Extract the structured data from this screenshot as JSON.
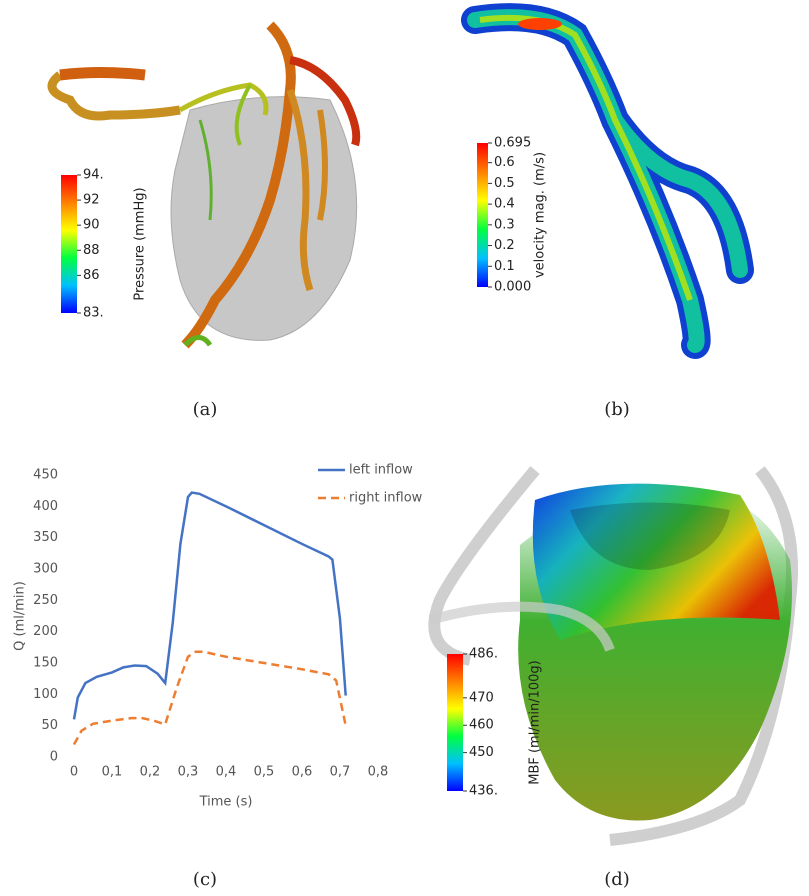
{
  "renders": [
    {
      "caption": "(a)",
      "colorbar": {
        "label": "Pressure (mmHg)",
        "lim": [
          83,
          94
        ],
        "ticks": [
          {
            "value": 94,
            "label": "94."
          },
          92,
          90,
          88,
          86,
          {
            "value": 83,
            "label": "83."
          }
        ],
        "colors": [
          "#0000ff",
          "#00c0ff",
          "#00ff40",
          "#ffff00",
          "#ff8000",
          "#ff0000"
        ]
      }
    },
    {
      "caption": "(b)",
      "colorbar": {
        "label": "velocity mag. (m/s)",
        "lim": [
          0,
          0.695
        ],
        "ticks": [
          0.695,
          0.6,
          0.5,
          0.4,
          0.3,
          0.2,
          0.1,
          {
            "value": 0,
            "label": "0.000"
          }
        ],
        "colors": [
          "#0000ff",
          "#00c0ff",
          "#00ff40",
          "#ffff00",
          "#ff8000",
          "#ff0000"
        ]
      }
    },
    {
      "caption": "(d)",
      "colorbar": {
        "label": "MBF (ml/min/100g)",
        "lim": [
          436,
          486
        ],
        "ticks": [
          {
            "value": 486,
            "label": "486."
          },
          470,
          460,
          450,
          {
            "value": 436,
            "label": "436."
          }
        ],
        "colors": [
          "#0000ff",
          "#00c0ff",
          "#00ff40",
          "#ffff00",
          "#ff8000",
          "#ff0000"
        ]
      }
    }
  ],
  "chart_data": {
    "type": "line",
    "caption": "(c)",
    "x_label": "Time (s)",
    "y_label": "Q (ml/min)",
    "xlim": [
      0,
      0.8
    ],
    "ylim": [
      0,
      450
    ],
    "xticks": [
      0,
      {
        "value": 0.1,
        "label": "0,1"
      },
      {
        "value": 0.2,
        "label": "0,2"
      },
      {
        "value": 0.3,
        "label": "0,3"
      },
      {
        "value": 0.4,
        "label": "0,4"
      },
      {
        "value": 0.5,
        "label": "0,5"
      },
      {
        "value": 0.6,
        "label": "0,6"
      },
      {
        "value": 0.7,
        "label": "0,7"
      },
      {
        "value": 0.8,
        "label": "0,8"
      }
    ],
    "yticks": [
      0,
      50,
      100,
      150,
      200,
      250,
      300,
      350,
      400,
      450
    ],
    "grid": false,
    "legend": "top-right",
    "series": [
      {
        "name": "left inflow",
        "color": "#4472c4",
        "dashed": false,
        "x": [
          0,
          0.01,
          0.03,
          0.06,
          0.1,
          0.13,
          0.16,
          0.19,
          0.22,
          0.24,
          0.26,
          0.28,
          0.3,
          0.31,
          0.33,
          0.4,
          0.5,
          0.6,
          0.67,
          0.68,
          0.7,
          0.715
        ],
        "values": [
          60,
          95,
          118,
          128,
          135,
          143,
          146,
          145,
          133,
          118,
          215,
          340,
          415,
          422,
          420,
          400,
          370,
          340,
          320,
          315,
          220,
          98
        ]
      },
      {
        "name": "right inflow",
        "color": "#ed7d31",
        "dashed": true,
        "x": [
          0,
          0.02,
          0.05,
          0.1,
          0.15,
          0.18,
          0.21,
          0.24,
          0.27,
          0.3,
          0.32,
          0.34,
          0.4,
          0.5,
          0.6,
          0.67,
          0.69,
          0.715
        ],
        "values": [
          20,
          42,
          53,
          58,
          62,
          62,
          58,
          52,
          110,
          160,
          168,
          168,
          160,
          150,
          140,
          132,
          122,
          50
        ]
      }
    ]
  }
}
